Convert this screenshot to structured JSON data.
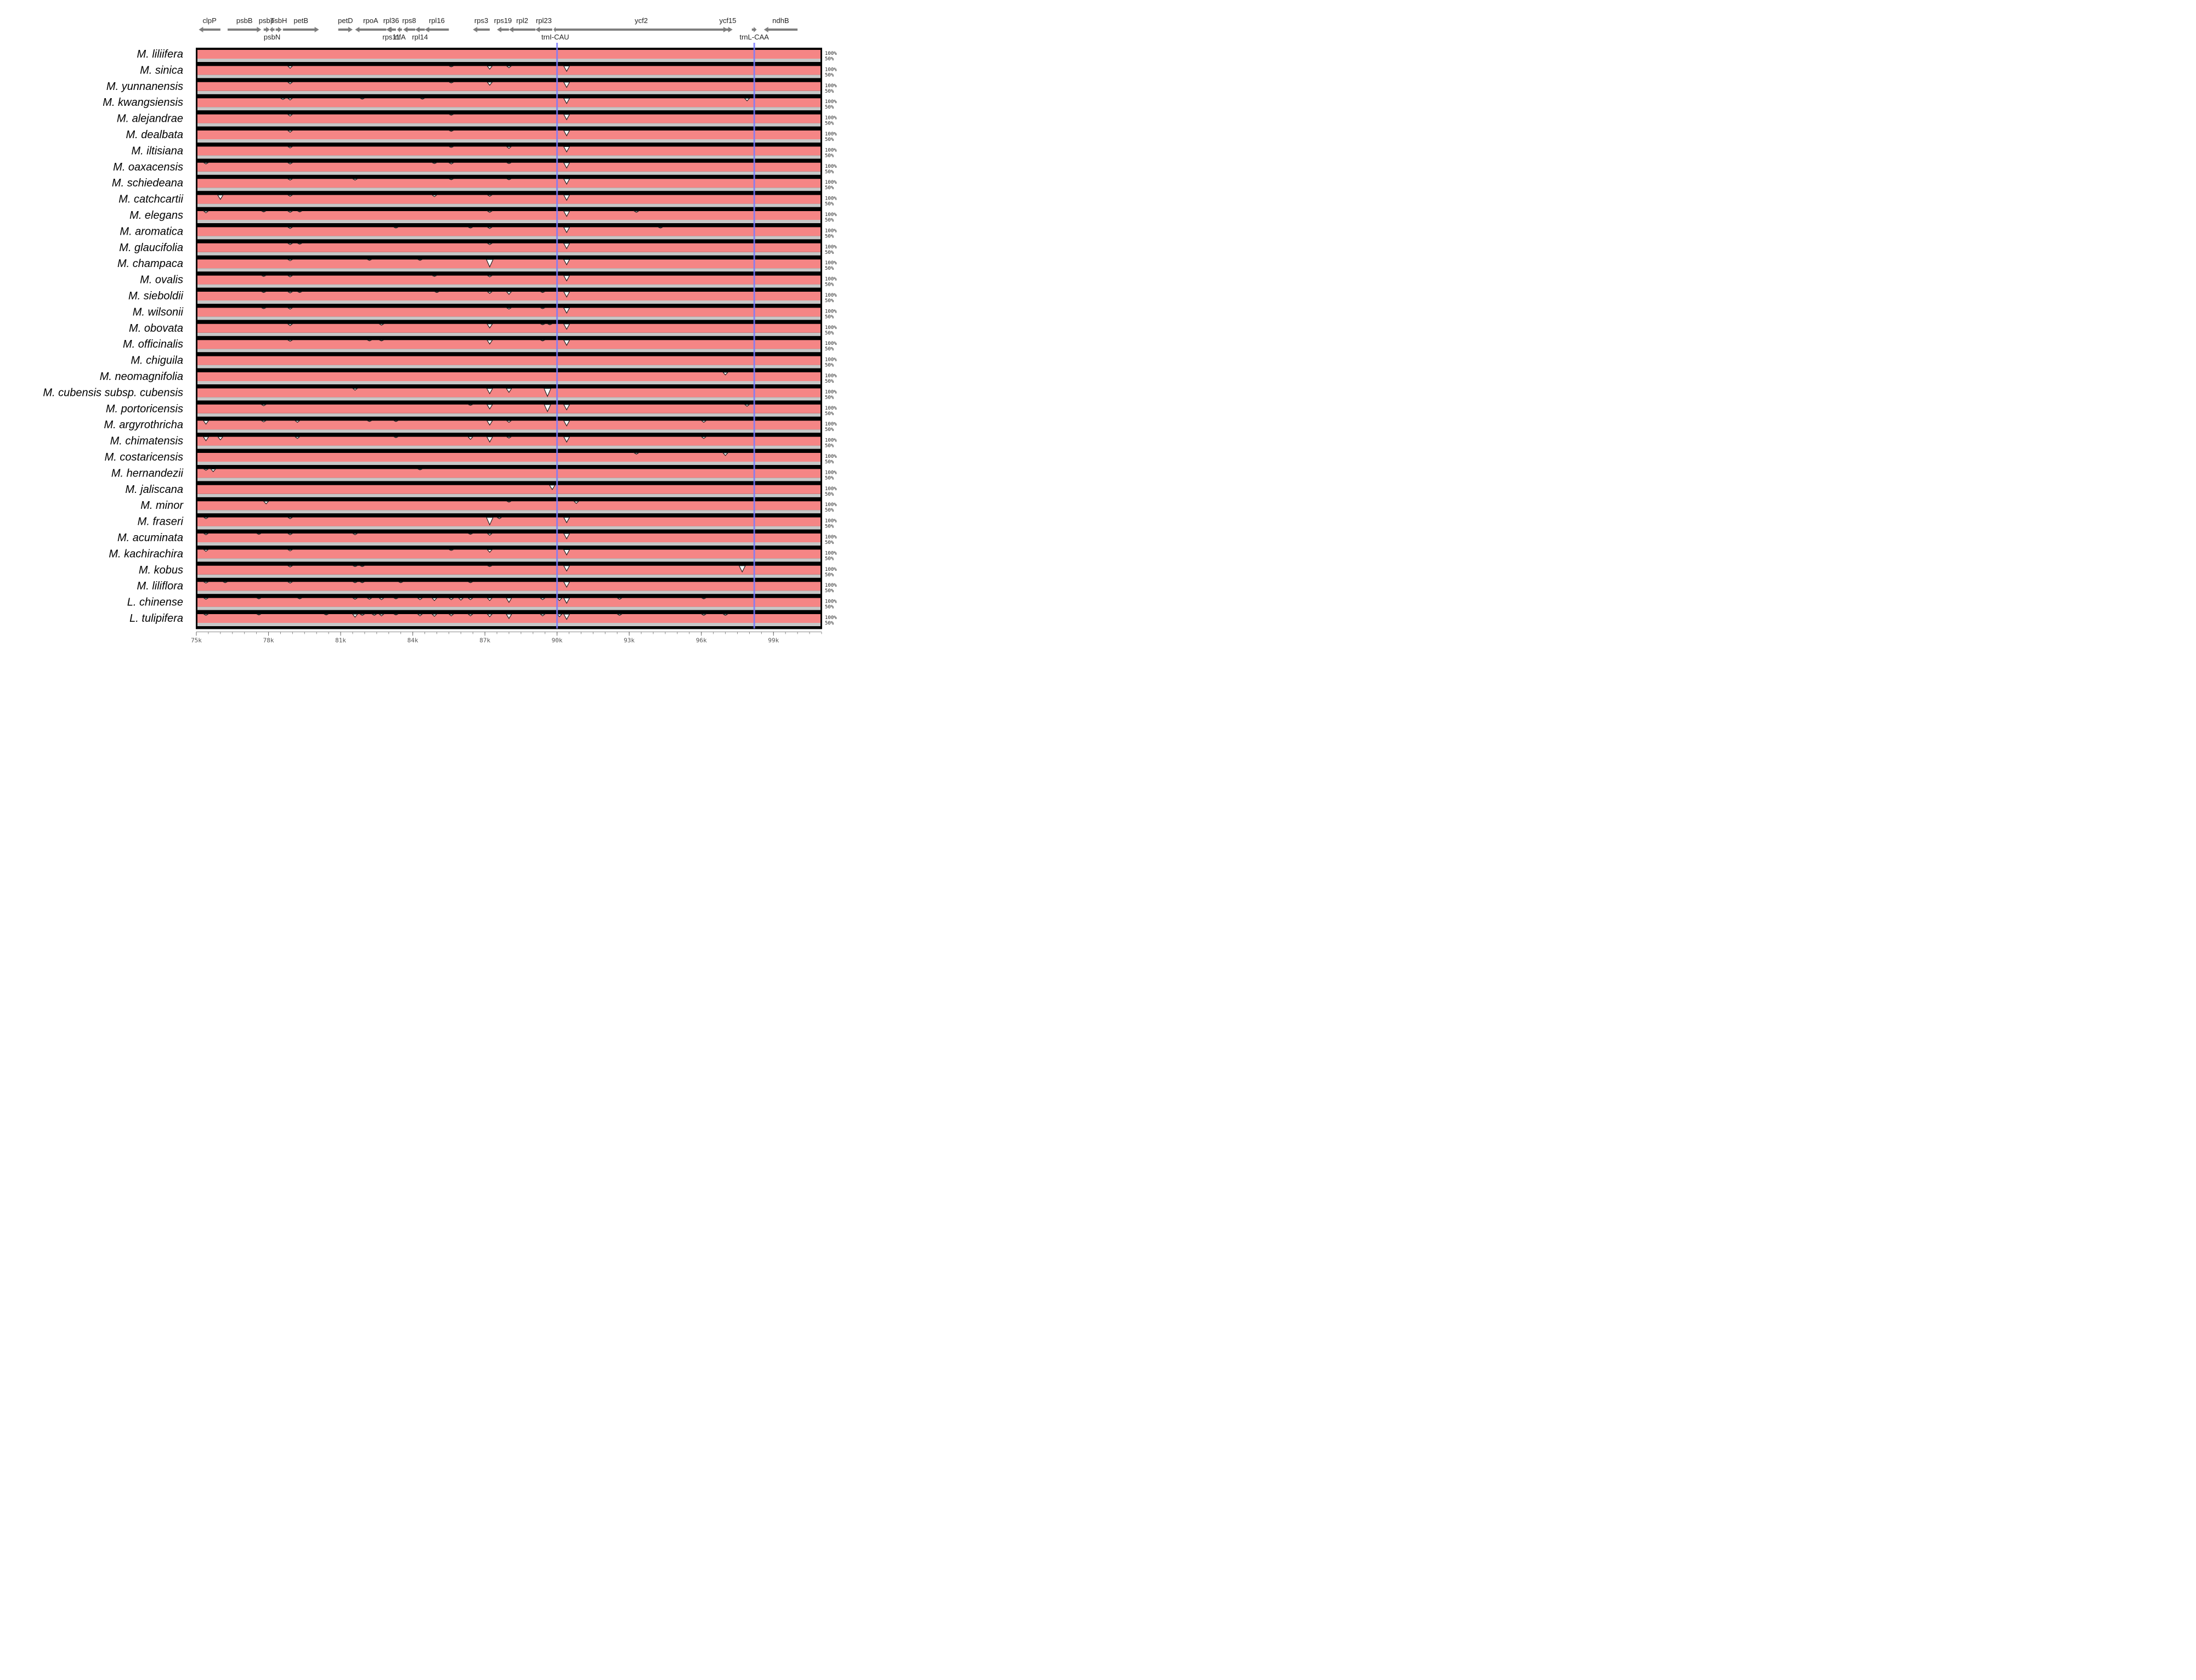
{
  "chart_data": {
    "type": "area",
    "title": "",
    "xlabel": "",
    "ylabel": "",
    "xlim": [
      75,
      101
    ],
    "x_ticks": [
      {
        "value": 75,
        "label": "75k"
      },
      {
        "value": 78,
        "label": "78k"
      },
      {
        "value": 81,
        "label": "81k"
      },
      {
        "value": 84,
        "label": "84k"
      },
      {
        "value": 87,
        "label": "87k"
      },
      {
        "value": 90,
        "label": "90k"
      },
      {
        "value": 93,
        "label": "93k"
      },
      {
        "value": 96,
        "label": "96k"
      },
      {
        "value": 99,
        "label": "99k"
      }
    ],
    "y_levels": [
      "100%",
      "50%"
    ],
    "boundary_lines": [
      90.0,
      98.2
    ],
    "colors": {
      "track": "#f58585",
      "band": "#c7c7c7",
      "boundary": "#7b7bff",
      "gene": "#7f7f7f"
    },
    "genes": [
      {
        "name": "clpP",
        "start": 75.1,
        "end": 76.0,
        "dir": "left",
        "row": "top"
      },
      {
        "name": "psbB",
        "start": 76.3,
        "end": 77.7,
        "dir": "right",
        "row": "top"
      },
      {
        "name": "psbT",
        "start": 77.8,
        "end": 78.05,
        "dir": "right",
        "row": "top"
      },
      {
        "name": "psbH",
        "start": 78.3,
        "end": 78.55,
        "dir": "right",
        "row": "top"
      },
      {
        "name": "petB",
        "start": 78.6,
        "end": 80.1,
        "dir": "right",
        "row": "top"
      },
      {
        "name": "psbN",
        "start": 78.05,
        "end": 78.25,
        "dir": "left",
        "row": "bottom"
      },
      {
        "name": "petD",
        "start": 80.9,
        "end": 81.5,
        "dir": "right",
        "row": "top"
      },
      {
        "name": "rpoA",
        "start": 81.6,
        "end": 82.9,
        "dir": "left",
        "row": "top"
      },
      {
        "name": "rpl36",
        "start": 83.0,
        "end": 83.2,
        "dir": "left",
        "row": "top"
      },
      {
        "name": "rps8",
        "start": 83.6,
        "end": 84.1,
        "dir": "left",
        "row": "top"
      },
      {
        "name": "rpl16",
        "start": 84.5,
        "end": 85.5,
        "dir": "left",
        "row": "top"
      },
      {
        "name": "rps11",
        "start": 82.9,
        "end": 83.3,
        "dir": "left",
        "row": "bottom"
      },
      {
        "name": "infA",
        "start": 83.35,
        "end": 83.55,
        "dir": "left",
        "row": "bottom"
      },
      {
        "name": "rpl14",
        "start": 84.1,
        "end": 84.5,
        "dir": "left",
        "row": "bottom"
      },
      {
        "name": "rps3",
        "start": 86.5,
        "end": 87.2,
        "dir": "left",
        "row": "top"
      },
      {
        "name": "rps19",
        "start": 87.5,
        "end": 88.0,
        "dir": "left",
        "row": "top"
      },
      {
        "name": "rpl2",
        "start": 88.0,
        "end": 89.1,
        "dir": "left",
        "row": "top"
      },
      {
        "name": "rpl23",
        "start": 89.1,
        "end": 89.8,
        "dir": "left",
        "row": "top"
      },
      {
        "name": "ycf2",
        "start": 89.9,
        "end": 97.1,
        "dir": "right",
        "row": "top"
      },
      {
        "name": "trnI-CAU",
        "start": 89.85,
        "end": 90.0,
        "dir": "left",
        "row": "bottom"
      },
      {
        "name": "ycf15",
        "start": 96.9,
        "end": 97.3,
        "dir": "right",
        "row": "top"
      },
      {
        "name": "trnL-CAA",
        "start": 98.1,
        "end": 98.3,
        "dir": "right",
        "row": "bottom"
      },
      {
        "name": "ndhB",
        "start": 98.6,
        "end": 100.0,
        "dir": "left",
        "row": "top"
      }
    ],
    "series": [
      {
        "name": "M. liliifera",
        "dips": []
      },
      {
        "name": "M. sinica",
        "dips": [
          [
            78.9,
            0.25
          ],
          [
            85.6,
            0.1
          ],
          [
            87.2,
            0.35
          ],
          [
            88.0,
            0.2
          ],
          [
            90.4,
            0.6
          ]
        ]
      },
      {
        "name": "M. yunnanensis",
        "dips": [
          [
            78.9,
            0.2
          ],
          [
            85.6,
            0.1
          ],
          [
            87.2,
            0.35
          ],
          [
            90.4,
            0.6
          ]
        ]
      },
      {
        "name": "M. kwangsiensis",
        "dips": [
          [
            78.6,
            0.15
          ],
          [
            78.9,
            0.2
          ],
          [
            81.9,
            0.1
          ],
          [
            84.4,
            0.1
          ],
          [
            90.4,
            0.6
          ],
          [
            97.9,
            0.3
          ]
        ]
      },
      {
        "name": "M. alejandrae",
        "dips": [
          [
            78.9,
            0.2
          ],
          [
            85.6,
            0.1
          ],
          [
            90.4,
            0.6
          ]
        ]
      },
      {
        "name": "M. dealbata",
        "dips": [
          [
            78.9,
            0.2
          ],
          [
            85.6,
            0.1
          ],
          [
            90.4,
            0.6
          ]
        ]
      },
      {
        "name": "M. iltisiana",
        "dips": [
          [
            78.9,
            0.15
          ],
          [
            85.6,
            0.1
          ],
          [
            88.0,
            0.2
          ],
          [
            90.4,
            0.6
          ]
        ]
      },
      {
        "name": "M. oaxacensis",
        "dips": [
          [
            75.4,
            0.15
          ],
          [
            78.9,
            0.15
          ],
          [
            84.9,
            0.1
          ],
          [
            85.6,
            0.15
          ],
          [
            88.0,
            0.1
          ],
          [
            90.4,
            0.6
          ]
        ]
      },
      {
        "name": "M. schiedeana",
        "dips": [
          [
            78.9,
            0.15
          ],
          [
            81.6,
            0.15
          ],
          [
            85.6,
            0.1
          ],
          [
            88.0,
            0.1
          ],
          [
            90.4,
            0.6
          ]
        ]
      },
      {
        "name": "M. catchcartii",
        "dips": [
          [
            76.0,
            0.5
          ],
          [
            78.9,
            0.15
          ],
          [
            84.9,
            0.2
          ],
          [
            87.2,
            0.15
          ],
          [
            90.4,
            0.6
          ]
        ]
      },
      {
        "name": "M. elegans",
        "dips": [
          [
            75.4,
            0.2
          ],
          [
            77.8,
            0.1
          ],
          [
            78.9,
            0.15
          ],
          [
            79.3,
            0.1
          ],
          [
            87.2,
            0.15
          ],
          [
            90.4,
            0.6
          ],
          [
            93.3,
            0.15
          ]
        ]
      },
      {
        "name": "M. aromatica",
        "dips": [
          [
            78.9,
            0.15
          ],
          [
            83.3,
            0.1
          ],
          [
            86.4,
            0.1
          ],
          [
            87.2,
            0.15
          ],
          [
            90.4,
            0.6
          ],
          [
            94.3,
            0.1
          ]
        ]
      },
      {
        "name": "M. glaucifolia",
        "dips": [
          [
            78.9,
            0.15
          ],
          [
            79.3,
            0.1
          ],
          [
            87.2,
            0.15
          ],
          [
            90.4,
            0.6
          ]
        ]
      },
      {
        "name": "M. champaca",
        "dips": [
          [
            78.9,
            0.15
          ],
          [
            82.2,
            0.1
          ],
          [
            84.3,
            0.1
          ],
          [
            87.2,
            0.85
          ],
          [
            90.4,
            0.6
          ]
        ]
      },
      {
        "name": "M. ovalis",
        "dips": [
          [
            77.8,
            0.1
          ],
          [
            78.9,
            0.15
          ],
          [
            84.9,
            0.1
          ],
          [
            87.2,
            0.15
          ],
          [
            90.4,
            0.6
          ]
        ]
      },
      {
        "name": "M. sieboldii",
        "dips": [
          [
            77.8,
            0.1
          ],
          [
            78.9,
            0.15
          ],
          [
            79.3,
            0.1
          ],
          [
            85.0,
            0.1
          ],
          [
            87.2,
            0.2
          ],
          [
            88.0,
            0.3
          ],
          [
            89.4,
            0.1
          ],
          [
            90.4,
            0.6
          ]
        ]
      },
      {
        "name": "M. wilsonii",
        "dips": [
          [
            77.8,
            0.1
          ],
          [
            78.9,
            0.15
          ],
          [
            88.0,
            0.15
          ],
          [
            89.4,
            0.1
          ],
          [
            90.4,
            0.6
          ]
        ]
      },
      {
        "name": "M. obovata",
        "dips": [
          [
            78.9,
            0.2
          ],
          [
            82.7,
            0.15
          ],
          [
            87.2,
            0.45
          ],
          [
            89.4,
            0.1
          ],
          [
            89.7,
            0.1
          ],
          [
            90.4,
            0.6
          ]
        ]
      },
      {
        "name": "M. officinalis",
        "dips": [
          [
            78.9,
            0.15
          ],
          [
            82.2,
            0.1
          ],
          [
            82.7,
            0.1
          ],
          [
            87.2,
            0.45
          ],
          [
            89.4,
            0.1
          ],
          [
            90.4,
            0.6
          ]
        ]
      },
      {
        "name": "M. chiguila",
        "dips": []
      },
      {
        "name": "M. neomagnifolia",
        "dips": [
          [
            97.0,
            0.3
          ]
        ]
      },
      {
        "name": "M. cubensis subsp. cubensis",
        "dips": [
          [
            81.6,
            0.2
          ],
          [
            87.2,
            0.6
          ],
          [
            88.0,
            0.45
          ],
          [
            89.6,
            0.9
          ]
        ]
      },
      {
        "name": "M. portoricensis",
        "dips": [
          [
            77.8,
            0.15
          ],
          [
            86.4,
            0.1
          ],
          [
            87.2,
            0.5
          ],
          [
            89.6,
            0.8
          ],
          [
            90.4,
            0.6
          ],
          [
            97.9,
            0.2
          ]
        ]
      },
      {
        "name": "M. argyrothricha",
        "dips": [
          [
            75.4,
            0.4
          ],
          [
            77.8,
            0.15
          ],
          [
            79.2,
            0.2
          ],
          [
            82.2,
            0.1
          ],
          [
            83.3,
            0.1
          ],
          [
            87.2,
            0.5
          ],
          [
            88.0,
            0.2
          ],
          [
            90.4,
            0.6
          ],
          [
            96.1,
            0.2
          ]
        ]
      },
      {
        "name": "M. chimatensis",
        "dips": [
          [
            75.4,
            0.45
          ],
          [
            76.0,
            0.35
          ],
          [
            79.2,
            0.2
          ],
          [
            83.3,
            0.1
          ],
          [
            86.4,
            0.3
          ],
          [
            87.2,
            0.6
          ],
          [
            88.0,
            0.15
          ],
          [
            90.4,
            0.6
          ],
          [
            96.1,
            0.2
          ]
        ]
      },
      {
        "name": "M. costaricensis",
        "dips": [
          [
            93.3,
            0.15
          ],
          [
            97.0,
            0.3
          ]
        ]
      },
      {
        "name": "M. hernandezii",
        "dips": [
          [
            75.4,
            0.15
          ],
          [
            75.7,
            0.3
          ],
          [
            84.3,
            0.1
          ]
        ]
      },
      {
        "name": "M. jaliscana",
        "dips": [
          [
            89.8,
            0.5
          ]
        ]
      },
      {
        "name": "M. minor",
        "dips": [
          [
            77.9,
            0.3
          ],
          [
            88.0,
            0.1
          ],
          [
            90.8,
            0.25
          ]
        ]
      },
      {
        "name": "M. fraseri",
        "dips": [
          [
            75.4,
            0.15
          ],
          [
            78.9,
            0.15
          ],
          [
            87.2,
            0.85
          ],
          [
            87.6,
            0.15
          ],
          [
            90.4,
            0.6
          ]
        ]
      },
      {
        "name": "M. acuminata",
        "dips": [
          [
            75.4,
            0.15
          ],
          [
            77.6,
            0.1
          ],
          [
            78.9,
            0.15
          ],
          [
            81.6,
            0.15
          ],
          [
            86.4,
            0.1
          ],
          [
            87.2,
            0.2
          ],
          [
            90.4,
            0.6
          ]
        ]
      },
      {
        "name": "M. kachirachira",
        "dips": [
          [
            75.4,
            0.2
          ],
          [
            78.9,
            0.15
          ],
          [
            85.6,
            0.1
          ],
          [
            87.2,
            0.3
          ],
          [
            90.4,
            0.6
          ]
        ]
      },
      {
        "name": "M. kobus",
        "dips": [
          [
            78.9,
            0.15
          ],
          [
            81.6,
            0.1
          ],
          [
            81.9,
            0.1
          ],
          [
            87.2,
            0.1
          ],
          [
            90.4,
            0.6
          ],
          [
            97.7,
            0.7
          ]
        ]
      },
      {
        "name": "M. liliflora",
        "dips": [
          [
            75.4,
            0.15
          ],
          [
            76.2,
            0.1
          ],
          [
            78.9,
            0.15
          ],
          [
            81.6,
            0.1
          ],
          [
            81.9,
            0.1
          ],
          [
            83.5,
            0.1
          ],
          [
            86.4,
            0.1
          ],
          [
            90.4,
            0.6
          ]
        ]
      },
      {
        "name": "L. chinense",
        "dips": [
          [
            75.4,
            0.15
          ],
          [
            77.6,
            0.1
          ],
          [
            79.3,
            0.1
          ],
          [
            81.6,
            0.15
          ],
          [
            82.2,
            0.15
          ],
          [
            82.7,
            0.2
          ],
          [
            83.3,
            0.1
          ],
          [
            84.3,
            0.2
          ],
          [
            84.9,
            0.3
          ],
          [
            85.6,
            0.2
          ],
          [
            86.0,
            0.25
          ],
          [
            86.4,
            0.2
          ],
          [
            87.2,
            0.3
          ],
          [
            88.0,
            0.5
          ],
          [
            89.4,
            0.2
          ],
          [
            90.1,
            0.3
          ],
          [
            90.4,
            0.6
          ],
          [
            92.6,
            0.15
          ],
          [
            96.1,
            0.1
          ]
        ]
      },
      {
        "name": "L. tulipifera",
        "dips": [
          [
            75.4,
            0.15
          ],
          [
            77.6,
            0.1
          ],
          [
            80.4,
            0.1
          ],
          [
            81.6,
            0.35
          ],
          [
            81.9,
            0.15
          ],
          [
            82.4,
            0.15
          ],
          [
            82.7,
            0.2
          ],
          [
            83.3,
            0.1
          ],
          [
            84.3,
            0.2
          ],
          [
            84.9,
            0.25
          ],
          [
            85.6,
            0.2
          ],
          [
            86.4,
            0.2
          ],
          [
            87.2,
            0.3
          ],
          [
            88.0,
            0.5
          ],
          [
            89.4,
            0.2
          ],
          [
            90.1,
            0.3
          ],
          [
            90.4,
            0.6
          ],
          [
            92.6,
            0.15
          ],
          [
            96.1,
            0.15
          ],
          [
            97.0,
            0.15
          ]
        ]
      }
    ]
  }
}
